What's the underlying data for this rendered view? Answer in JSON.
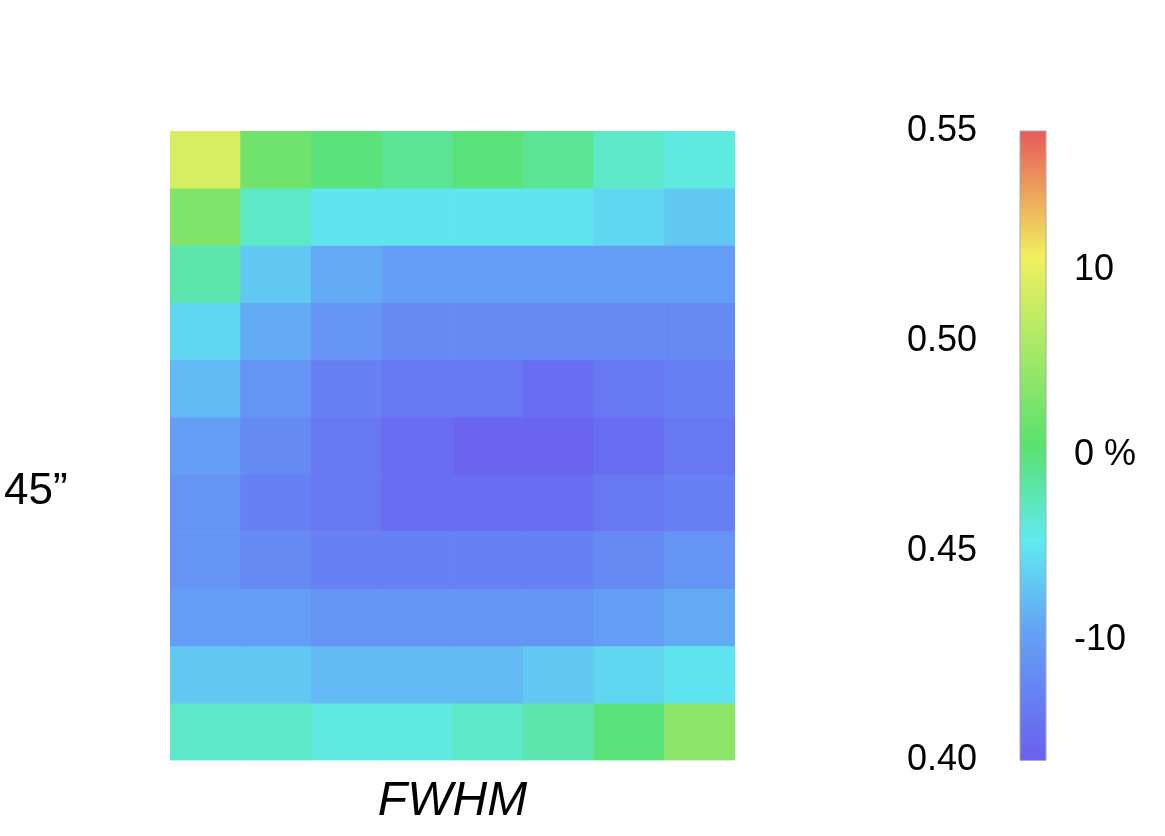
{
  "chart_data": {
    "type": "heatmap",
    "xlabel": "FWHM",
    "ylabel": "45”",
    "categories": [
      null,
      null,
      null,
      null,
      null,
      null,
      null,
      null
    ],
    "cells": [
      [
        9,
        2,
        0,
        -1,
        0,
        -1,
        -3,
        -4
      ],
      [
        3,
        -3,
        -5,
        -5,
        -5,
        -5,
        -6,
        -7
      ],
      [
        -2,
        -7,
        -9,
        -10,
        -10,
        -10,
        -10,
        -10
      ],
      [
        -6,
        -9,
        -11,
        -12,
        -12,
        -12,
        -12,
        -12
      ],
      [
        -8,
        -11,
        -13,
        -14,
        -14,
        -15,
        -14,
        -13
      ],
      [
        -10,
        -12,
        -14,
        -15,
        -16,
        -16,
        -15,
        -14
      ],
      [
        -11,
        -13,
        -14,
        -15,
        -15,
        -15,
        -14,
        -13
      ],
      [
        -11,
        -12,
        -13,
        -13,
        -13,
        -13,
        -12,
        -11
      ],
      [
        -10,
        -10,
        -11,
        -11,
        -11,
        -11,
        -10,
        -9
      ],
      [
        -7,
        -7,
        -8,
        -8,
        -8,
        -7,
        -6,
        -5
      ],
      [
        -3,
        -3,
        -4,
        -4,
        -3,
        -2,
        0,
        4
      ]
    ],
    "y_categories": [
      null,
      null,
      null,
      null,
      null,
      null,
      null,
      null,
      null,
      null,
      null
    ],
    "annotations": [
      "0.55",
      "0.50",
      "0.45",
      "0.40"
    ],
    "clim": [
      -16.5,
      17.5
    ],
    "cticks": [
      -10,
      {
        "value": 0,
        "label": "0 %"
      },
      10
    ]
  }
}
